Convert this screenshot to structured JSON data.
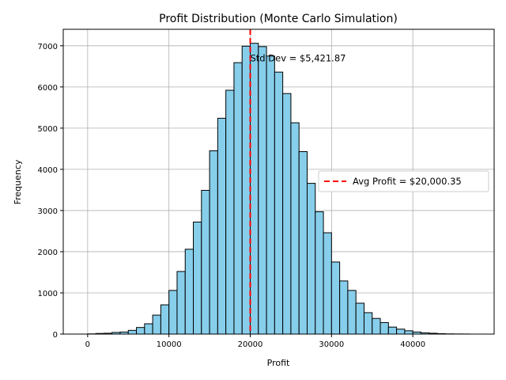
{
  "chart_data": {
    "type": "bar",
    "title": "Profit Distribution (Monte Carlo Simulation)",
    "xlabel": "Profit",
    "ylabel": "Frequency",
    "xlim": [
      -3000,
      50000
    ],
    "ylim": [
      0,
      7400
    ],
    "xticks": [
      0,
      10000,
      20000,
      30000,
      40000
    ],
    "yticks": [
      0,
      1000,
      2000,
      3000,
      4000,
      5000,
      6000,
      7000
    ],
    "grid": true,
    "bar_color": "#87ceeb",
    "bar_edge_color": "#000000",
    "bin_edges": [
      0,
      1000,
      2000,
      3000,
      4000,
      5000,
      6000,
      7000,
      8000,
      9000,
      10000,
      11000,
      12000,
      13000,
      14000,
      15000,
      16000,
      17000,
      18000,
      19000,
      20000,
      21000,
      22000,
      23000,
      24000,
      25000,
      26000,
      27000,
      28000,
      29000,
      30000,
      31000,
      32000,
      33000,
      34000,
      35000,
      36000,
      37000,
      38000,
      39000,
      40000,
      41000,
      42000,
      43000,
      44000,
      45000,
      46000,
      47000
    ],
    "counts": [
      5,
      15,
      20,
      40,
      50,
      90,
      160,
      250,
      460,
      710,
      1060,
      1520,
      2060,
      2720,
      3490,
      4450,
      5240,
      5920,
      6590,
      6990,
      7060,
      6980,
      6750,
      6360,
      5840,
      5130,
      4430,
      3660,
      2970,
      2460,
      1750,
      1290,
      1060,
      750,
      520,
      380,
      280,
      170,
      120,
      80,
      50,
      30,
      20,
      10,
      5,
      3,
      2
    ],
    "mean_line": {
      "x": 20000.35,
      "color": "#ff0000",
      "style": "dashed"
    },
    "legend": {
      "position": "right",
      "entries": [
        "Avg Profit = $20,000.35"
      ]
    },
    "annotation": {
      "text": "Std Dev = $5,421.87",
      "x": 20000,
      "y": 6700
    }
  }
}
